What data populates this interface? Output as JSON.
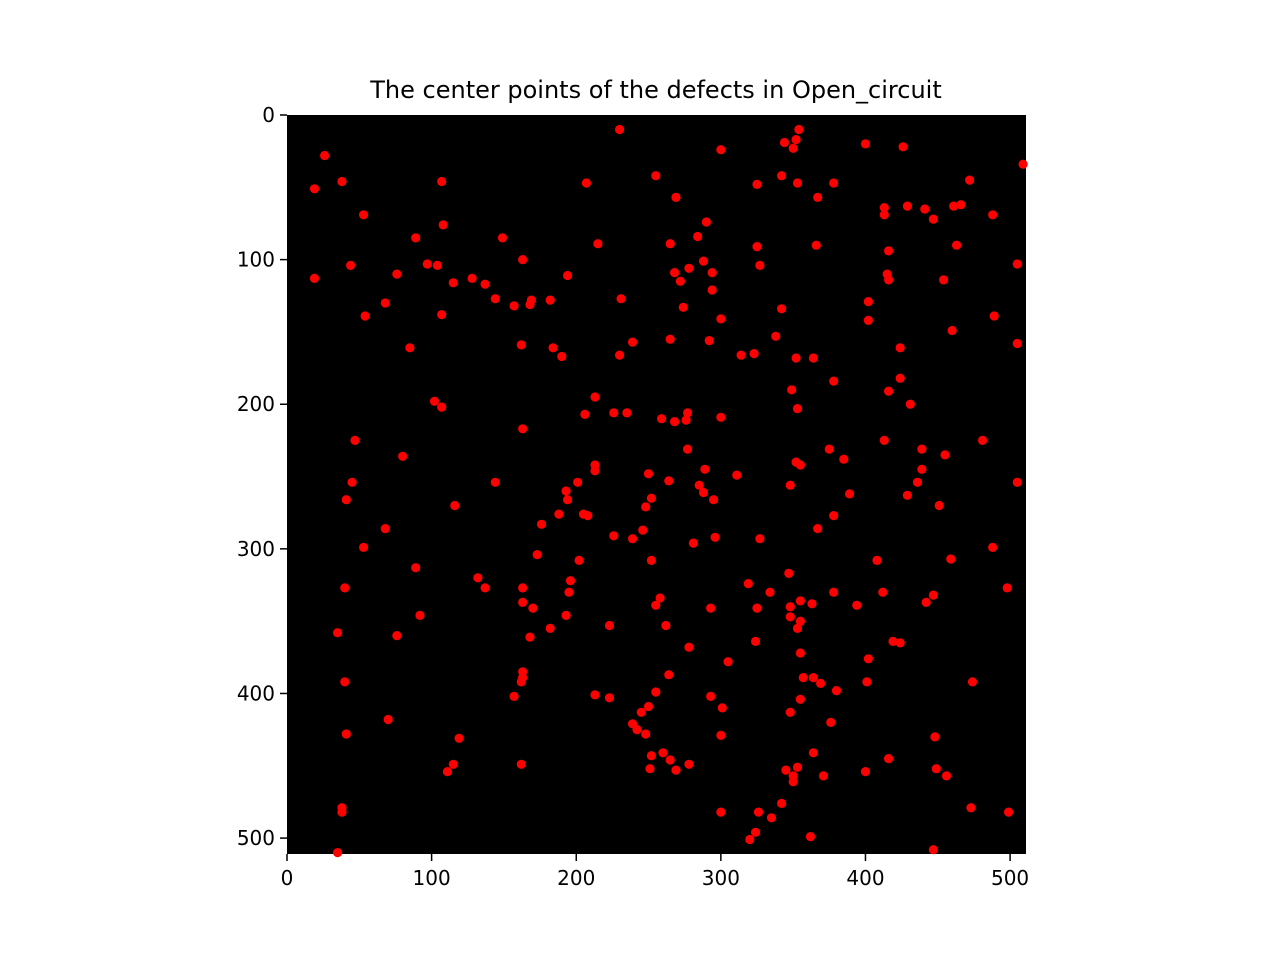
{
  "chart_data": {
    "type": "scatter",
    "title": "The center points of the defects in Open_circuit",
    "xlabel": "",
    "ylabel": "",
    "xlim": [
      0,
      511
    ],
    "ylim": [
      511,
      0
    ],
    "y_inverted": true,
    "grid": false,
    "background_color": "#000000",
    "point_color": "#ff0000",
    "x_ticks": [
      0,
      100,
      200,
      300,
      400,
      500
    ],
    "y_ticks": [
      0,
      100,
      200,
      300,
      400,
      500
    ],
    "points": [
      [
        230,
        10
      ],
      [
        354,
        10
      ],
      [
        344,
        19
      ],
      [
        352,
        17
      ],
      [
        350,
        23
      ],
      [
        26,
        28
      ],
      [
        300,
        24
      ],
      [
        400,
        20
      ],
      [
        426,
        22
      ],
      [
        509,
        34
      ],
      [
        19,
        51
      ],
      [
        38,
        46
      ],
      [
        107,
        46
      ],
      [
        207,
        47
      ],
      [
        255,
        42
      ],
      [
        342,
        42
      ],
      [
        353,
        47
      ],
      [
        325,
        48
      ],
      [
        378,
        47
      ],
      [
        472,
        45
      ],
      [
        269,
        57
      ],
      [
        367,
        57
      ],
      [
        53,
        69
      ],
      [
        108,
        76
      ],
      [
        413,
        64
      ],
      [
        429,
        63
      ],
      [
        441,
        65
      ],
      [
        413,
        69
      ],
      [
        447,
        72
      ],
      [
        461,
        63
      ],
      [
        466,
        62
      ],
      [
        488,
        69
      ],
      [
        89,
        85
      ],
      [
        149,
        85
      ],
      [
        215,
        89
      ],
      [
        265,
        89
      ],
      [
        284,
        84
      ],
      [
        290,
        74
      ],
      [
        325,
        91
      ],
      [
        366,
        90
      ],
      [
        416,
        94
      ],
      [
        463,
        90
      ],
      [
        19,
        113
      ],
      [
        44,
        104
      ],
      [
        76,
        110
      ],
      [
        97,
        103
      ],
      [
        104,
        104
      ],
      [
        163,
        100
      ],
      [
        194,
        111
      ],
      [
        128,
        113
      ],
      [
        137,
        117
      ],
      [
        115,
        116
      ],
      [
        144,
        127
      ],
      [
        157,
        132
      ],
      [
        168,
        131
      ],
      [
        169,
        128
      ],
      [
        182,
        128
      ],
      [
        68,
        130
      ],
      [
        268,
        109
      ],
      [
        272,
        115
      ],
      [
        278,
        106
      ],
      [
        288,
        101
      ],
      [
        294,
        109
      ],
      [
        294,
        121
      ],
      [
        274,
        133
      ],
      [
        231,
        127
      ],
      [
        327,
        104
      ],
      [
        415,
        110
      ],
      [
        416,
        114
      ],
      [
        454,
        114
      ],
      [
        505,
        103
      ],
      [
        54,
        139
      ],
      [
        107,
        138
      ],
      [
        300,
        141
      ],
      [
        402,
        129
      ],
      [
        402,
        142
      ],
      [
        342,
        134
      ],
      [
        338,
        153
      ],
      [
        460,
        149
      ],
      [
        489,
        139
      ],
      [
        505,
        158
      ],
      [
        85,
        161
      ],
      [
        162,
        159
      ],
      [
        184,
        161
      ],
      [
        190,
        167
      ],
      [
        230,
        166
      ],
      [
        239,
        157
      ],
      [
        265,
        155
      ],
      [
        292,
        156
      ],
      [
        314,
        166
      ],
      [
        323,
        165
      ],
      [
        352,
        168
      ],
      [
        364,
        168
      ],
      [
        424,
        161
      ],
      [
        378,
        184
      ],
      [
        424,
        182
      ],
      [
        349,
        190
      ],
      [
        416,
        191
      ],
      [
        213,
        195
      ],
      [
        102,
        198
      ],
      [
        107,
        202
      ],
      [
        206,
        207
      ],
      [
        226,
        206
      ],
      [
        235,
        206
      ],
      [
        259,
        210
      ],
      [
        268,
        212
      ],
      [
        276,
        211
      ],
      [
        277,
        206
      ],
      [
        300,
        209
      ],
      [
        353,
        203
      ],
      [
        431,
        200
      ],
      [
        47,
        225
      ],
      [
        163,
        217
      ],
      [
        277,
        231
      ],
      [
        289,
        245
      ],
      [
        213,
        242
      ],
      [
        213,
        246
      ],
      [
        352,
        240
      ],
      [
        355,
        242
      ],
      [
        375,
        231
      ],
      [
        385,
        238
      ],
      [
        413,
        225
      ],
      [
        439,
        231
      ],
      [
        439,
        245
      ],
      [
        455,
        235
      ],
      [
        481,
        225
      ],
      [
        80,
        236
      ],
      [
        45,
        254
      ],
      [
        41,
        266
      ],
      [
        116,
        270
      ],
      [
        144,
        254
      ],
      [
        193,
        260
      ],
      [
        194,
        266
      ],
      [
        188,
        276
      ],
      [
        201,
        254
      ],
      [
        205,
        276
      ],
      [
        208,
        277
      ],
      [
        250,
        248
      ],
      [
        252,
        265
      ],
      [
        248,
        271
      ],
      [
        264,
        253
      ],
      [
        285,
        256
      ],
      [
        288,
        261
      ],
      [
        295,
        266
      ],
      [
        311,
        249
      ],
      [
        348,
        256
      ],
      [
        389,
        262
      ],
      [
        429,
        263
      ],
      [
        436,
        254
      ],
      [
        451,
        270
      ],
      [
        505,
        254
      ],
      [
        68,
        286
      ],
      [
        176,
        283
      ],
      [
        226,
        291
      ],
      [
        239,
        293
      ],
      [
        246,
        287
      ],
      [
        281,
        296
      ],
      [
        296,
        292
      ],
      [
        327,
        293
      ],
      [
        367,
        286
      ],
      [
        378,
        277
      ],
      [
        53,
        299
      ],
      [
        173,
        304
      ],
      [
        202,
        308
      ],
      [
        252,
        308
      ],
      [
        488,
        299
      ],
      [
        459,
        307
      ],
      [
        408,
        308
      ],
      [
        89,
        313
      ],
      [
        132,
        320
      ],
      [
        137,
        327
      ],
      [
        40,
        327
      ],
      [
        163,
        327
      ],
      [
        196,
        322
      ],
      [
        195,
        330
      ],
      [
        170,
        341
      ],
      [
        163,
        337
      ],
      [
        193,
        346
      ],
      [
        182,
        355
      ],
      [
        168,
        361
      ],
      [
        223,
        353
      ],
      [
        255,
        339
      ],
      [
        258,
        334
      ],
      [
        262,
        353
      ],
      [
        293,
        341
      ],
      [
        319,
        324
      ],
      [
        325,
        341
      ],
      [
        334,
        330
      ],
      [
        347,
        317
      ],
      [
        348,
        340
      ],
      [
        348,
        347
      ],
      [
        355,
        336
      ],
      [
        353,
        355
      ],
      [
        355,
        350
      ],
      [
        363,
        338
      ],
      [
        378,
        330
      ],
      [
        394,
        339
      ],
      [
        412,
        330
      ],
      [
        442,
        337
      ],
      [
        447,
        332
      ],
      [
        498,
        327
      ],
      [
        35,
        358
      ],
      [
        76,
        360
      ],
      [
        92,
        346
      ],
      [
        163,
        385
      ],
      [
        163,
        389
      ],
      [
        162,
        392
      ],
      [
        157,
        402
      ],
      [
        40,
        392
      ],
      [
        70,
        418
      ],
      [
        41,
        428
      ],
      [
        119,
        431
      ],
      [
        115,
        449
      ],
      [
        111,
        454
      ],
      [
        162,
        449
      ],
      [
        213,
        401
      ],
      [
        223,
        403
      ],
      [
        264,
        387
      ],
      [
        255,
        399
      ],
      [
        250,
        409
      ],
      [
        245,
        413
      ],
      [
        239,
        421
      ],
      [
        242,
        425
      ],
      [
        248,
        428
      ],
      [
        278,
        368
      ],
      [
        293,
        402
      ],
      [
        301,
        410
      ],
      [
        305,
        378
      ],
      [
        324,
        364
      ],
      [
        355,
        372
      ],
      [
        357,
        389
      ],
      [
        355,
        404
      ],
      [
        364,
        389
      ],
      [
        369,
        393
      ],
      [
        380,
        398
      ],
      [
        376,
        420
      ],
      [
        348,
        413
      ],
      [
        402,
        376
      ],
      [
        401,
        392
      ],
      [
        419,
        364
      ],
      [
        424,
        365
      ],
      [
        474,
        392
      ],
      [
        252,
        443
      ],
      [
        260,
        441
      ],
      [
        251,
        452
      ],
      [
        265,
        446
      ],
      [
        269,
        453
      ],
      [
        278,
        449
      ],
      [
        300,
        429
      ],
      [
        364,
        441
      ],
      [
        345,
        453
      ],
      [
        350,
        457
      ],
      [
        350,
        461
      ],
      [
        353,
        451
      ],
      [
        371,
        457
      ],
      [
        400,
        454
      ],
      [
        416,
        445
      ],
      [
        448,
        430
      ],
      [
        449,
        452
      ],
      [
        456,
        457
      ],
      [
        38,
        479
      ],
      [
        38,
        482
      ],
      [
        35,
        510
      ],
      [
        300,
        482
      ],
      [
        320,
        501
      ],
      [
        324,
        496
      ],
      [
        326,
        482
      ],
      [
        335,
        486
      ],
      [
        342,
        476
      ],
      [
        362,
        499
      ],
      [
        447,
        508
      ],
      [
        473,
        479
      ],
      [
        499,
        482
      ]
    ]
  }
}
